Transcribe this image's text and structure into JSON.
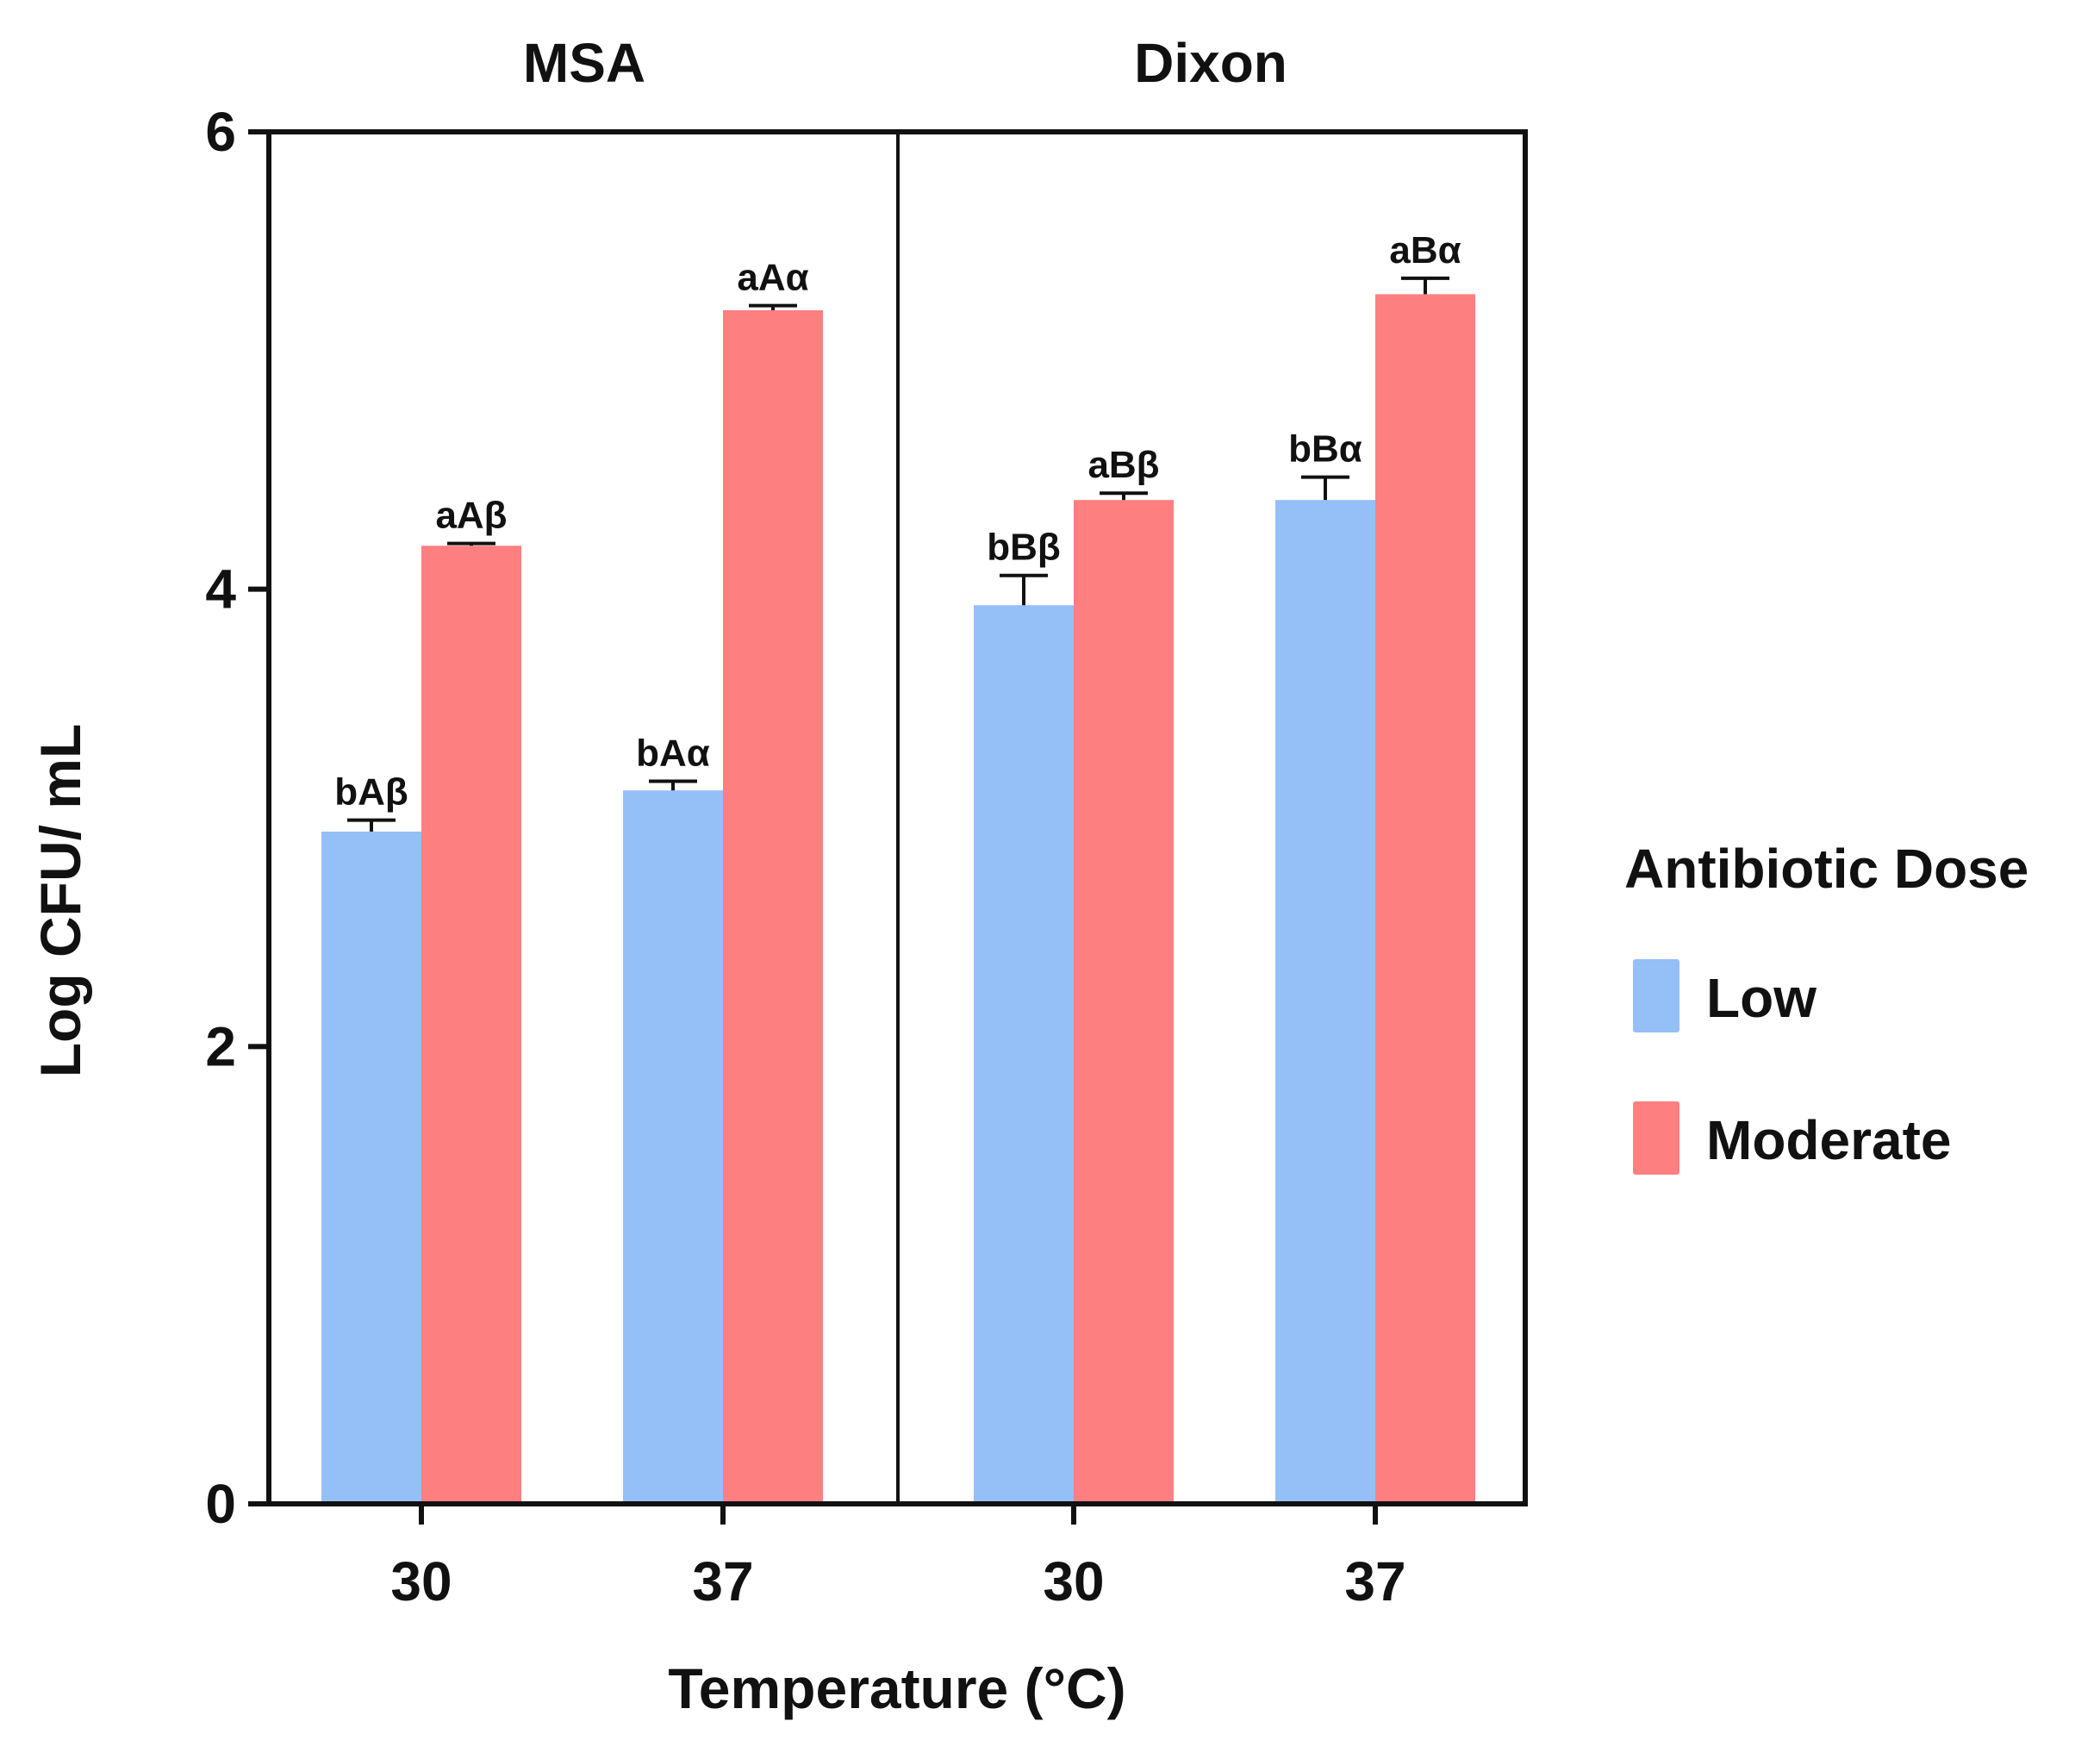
{
  "chart_data": {
    "type": "bar",
    "title": "",
    "xlabel": "Temperature (°C)",
    "ylabel": "Log CFU/ mL",
    "ylim": [
      0,
      6
    ],
    "yticks": [
      "0",
      "2",
      "4",
      "6"
    ],
    "grid": false,
    "legend": {
      "title": "Antibiotic Dose",
      "placement": "right",
      "entries": [
        "Low",
        "Moderate"
      ]
    },
    "colors": {
      "Low": "#94BFF7",
      "Moderate": "#FD7F80"
    },
    "panels": [
      {
        "title": "MSA",
        "categories": [
          "30",
          "37"
        ],
        "series": [
          {
            "name": "Low",
            "values": [
              2.94,
              3.12
            ],
            "errors": [
              0.05,
              0.04
            ],
            "labels": [
              "bAβ",
              "bAα"
            ]
          },
          {
            "name": "Moderate",
            "values": [
              4.19,
              5.22
            ],
            "errors": [
              0.01,
              0.02
            ],
            "labels": [
              "aAβ",
              "aAα"
            ]
          }
        ]
      },
      {
        "title": "Dixon",
        "categories": [
          "30",
          "37"
        ],
        "series": [
          {
            "name": "Low",
            "values": [
              3.93,
              4.39
            ],
            "errors": [
              0.13,
              0.1
            ],
            "labels": [
              "bBβ",
              "bBα"
            ]
          },
          {
            "name": "Moderate",
            "values": [
              4.39,
              5.29
            ],
            "errors": [
              0.03,
              0.07
            ],
            "labels": [
              "aBβ",
              "aBα"
            ]
          }
        ]
      }
    ]
  }
}
